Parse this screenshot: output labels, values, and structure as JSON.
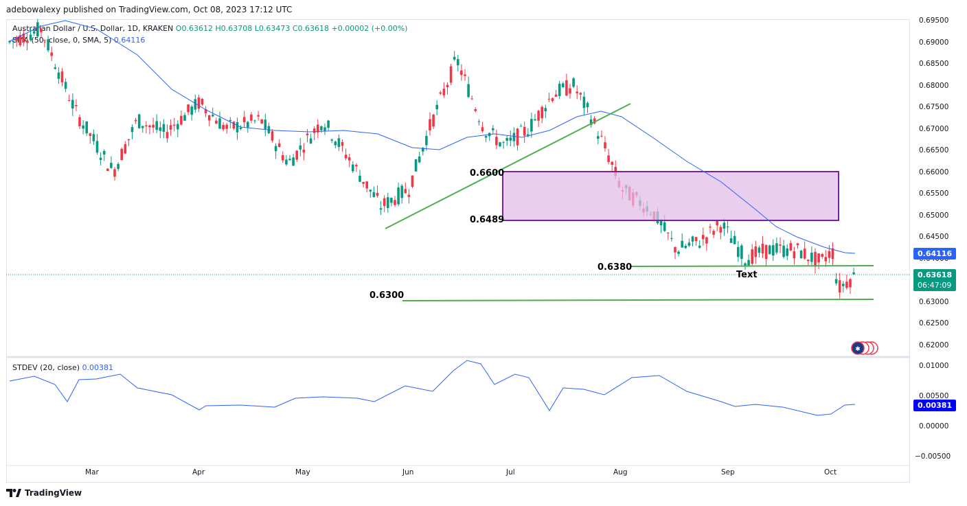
{
  "header": {
    "publisher": "adebowalexy published on TradingView.com, Oct 08, 2023 17:12 UTC"
  },
  "legend": {
    "symbol": "Australian Dollar / U.S. Dollar, 1D, KRAKEN",
    "open": "O0.63612",
    "high": "H0.63708",
    "low": "L0.63473",
    "close": "C0.63618",
    "change": "+0.00002 (+0.00%)",
    "sma_label": "SMA (50, close, 0, SMA, 5)",
    "sma_value": "0.64116"
  },
  "stdev": {
    "label": "STDEV (20, close)",
    "value": "0.00381"
  },
  "price_axis": [
    "0.69500",
    "0.69000",
    "0.68500",
    "0.68000",
    "0.67500",
    "0.67000",
    "0.66500",
    "0.66000",
    "0.65500",
    "0.65000",
    "0.64500",
    "0.64000",
    "0.63500",
    "0.63000",
    "0.62500",
    "0.62000"
  ],
  "stdev_axis": [
    "0.01000",
    "0.00500",
    "0.00000",
    "−0.00500"
  ],
  "time_axis": [
    "Mar",
    "Apr",
    "May",
    "Jun",
    "Jul",
    "Aug",
    "Sep",
    "Oct"
  ],
  "tags": {
    "sma": "0.64116",
    "last": "0.63618",
    "countdown": "06:47:09",
    "stdev": "0.00381"
  },
  "annotations": {
    "level_6600": "0.6600",
    "level_6489": "0.6489",
    "level_6380": "0.6380",
    "level_6300": "0.6300",
    "text_marker": "Text"
  },
  "colors": {
    "up": "#089981",
    "down": "#f23645",
    "sma": "#2962ff",
    "trend": "#4caf50",
    "zone_fill": "#e1bee7",
    "zone_border": "#7b1fa2"
  },
  "footer": {
    "brand": "TradingView"
  }
}
